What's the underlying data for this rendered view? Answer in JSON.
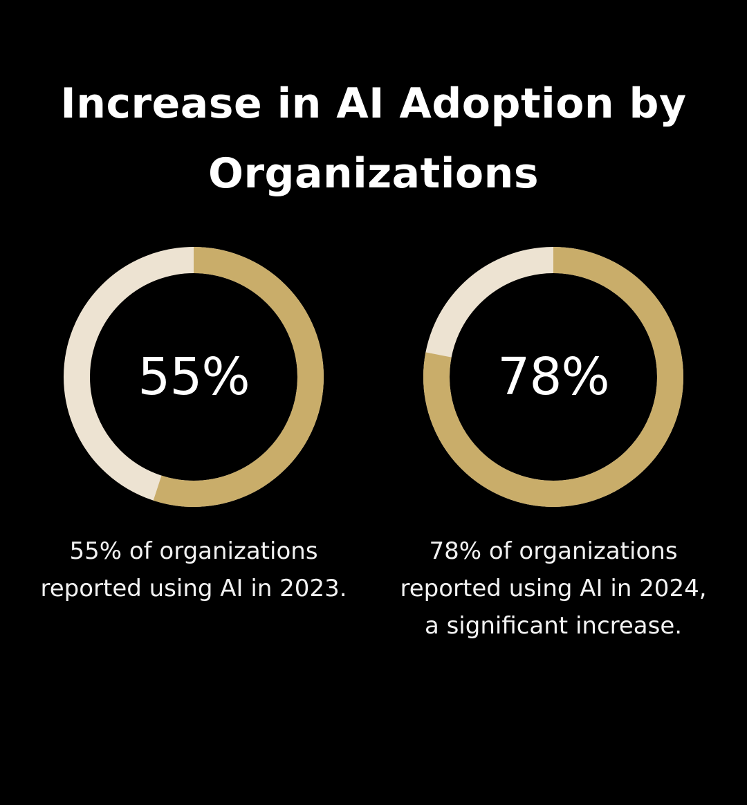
{
  "title": {
    "line1": "Increase in AI Adoption by",
    "line2": "Organizations"
  },
  "colors": {
    "background": "#000000",
    "filled": "#c9ad6a",
    "remaining": "#ede3d2",
    "text": "#ffffff"
  },
  "chart_data": [
    {
      "type": "pie",
      "title": "",
      "center_label": "55%",
      "values": [
        55,
        45
      ],
      "caption_lines": [
        "55% of organizations",
        "reported using AI in 2023."
      ]
    },
    {
      "type": "pie",
      "title": "",
      "center_label": "78%",
      "values": [
        78,
        22
      ],
      "caption_lines": [
        "78% of organizations",
        "reported using AI in 2024,",
        "a significant increase."
      ]
    }
  ]
}
